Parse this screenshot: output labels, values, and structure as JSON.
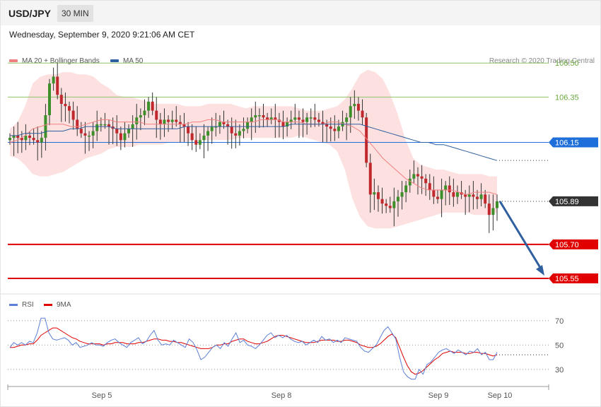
{
  "header": {
    "pair": "USD/JPY",
    "timeframe": "30 MIN"
  },
  "timestamp": "Wednesday, September 9, 2020 9:21:06 AM CET",
  "legend": {
    "ma20": "MA 20 + Bollinger Bands",
    "ma50": "MA 50",
    "ma20_color": "#f08080",
    "ma50_color": "#2f5f9e"
  },
  "copyright": "Research © 2020 Trading Central",
  "rsi_legend": {
    "rsi": "RSI",
    "ma9": "9MA",
    "rsi_color": "#5b7fd6",
    "ma9_color": "#e00000"
  },
  "chart_data": [
    {
      "type": "candlestick",
      "ylim": [
        105.5,
        106.56
      ],
      "x_ticks": [
        "Sep 5",
        "Sep 8",
        "Sep 9",
        "Sep 10"
      ],
      "levels": [
        {
          "value": 106.5,
          "label": "106.50",
          "color": "#8fc46a",
          "kind": "resistance"
        },
        {
          "value": 106.35,
          "label": "106.35",
          "color": "#8fc46a",
          "kind": "resistance"
        },
        {
          "value": 106.15,
          "label": "106.15",
          "color": "#1e6fd9",
          "kind": "pivot"
        },
        {
          "value": 105.89,
          "label": "105.89",
          "color": "#333333",
          "kind": "last_price"
        },
        {
          "value": 105.7,
          "label": "105.70",
          "color": "#e00000",
          "kind": "support"
        },
        {
          "value": 105.55,
          "label": "105.55",
          "color": "#e00000",
          "kind": "target"
        }
      ],
      "close": [
        106.17,
        106.18,
        106.17,
        106.16,
        106.18,
        106.17,
        106.16,
        106.15,
        106.17,
        106.27,
        106.41,
        106.44,
        106.36,
        106.32,
        106.31,
        106.29,
        106.25,
        106.21,
        106.19,
        106.18,
        106.18,
        106.2,
        106.23,
        106.23,
        106.23,
        106.22,
        106.21,
        106.19,
        106.16,
        106.19,
        106.21,
        106.23,
        106.26,
        106.27,
        106.29,
        106.33,
        106.29,
        106.25,
        106.23,
        106.25,
        106.24,
        106.25,
        106.24,
        106.23,
        106.22,
        106.19,
        106.16,
        106.14,
        106.16,
        106.18,
        106.2,
        106.22,
        106.22,
        106.24,
        106.23,
        106.22,
        106.19,
        106.18,
        106.2,
        106.21,
        106.24,
        106.26,
        106.27,
        106.27,
        106.26,
        106.25,
        106.26,
        106.25,
        106.24,
        106.22,
        106.24,
        106.25,
        106.26,
        106.25,
        106.24,
        106.26,
        106.26,
        106.25,
        106.24,
        106.23,
        106.22,
        106.21,
        106.2,
        106.22,
        106.24,
        106.26,
        106.31,
        106.32,
        106.29,
        106.26,
        106.06,
        105.92,
        105.93,
        105.9,
        105.88,
        105.87,
        105.86,
        105.89,
        105.91,
        105.93,
        105.96,
        105.99,
        106.01,
        106.0,
        105.99,
        105.97,
        105.94,
        105.91,
        105.9,
        105.94,
        105.96,
        105.93,
        105.91,
        105.93,
        105.92,
        105.91,
        105.92,
        105.91,
        105.9,
        105.92,
        105.88,
        105.83,
        105.86,
        105.89
      ],
      "ma20": [
        106.15,
        106.16,
        106.18,
        106.21,
        106.22,
        106.23,
        106.23,
        106.23,
        106.22,
        106.22,
        106.23,
        106.24,
        106.25,
        106.25,
        106.24,
        106.24,
        106.24,
        106.24,
        106.23,
        106.23,
        106.23,
        106.23,
        106.23,
        106.23,
        106.24,
        106.24,
        106.25,
        106.25,
        106.24,
        106.24,
        106.24,
        106.24,
        106.24,
        106.25,
        106.25,
        106.25,
        106.24,
        106.24,
        106.24,
        106.23,
        106.23,
        106.23,
        106.24,
        106.24,
        106.23,
        106.22,
        106.2,
        106.16,
        106.12,
        106.08,
        106.05,
        106.02,
        105.99,
        105.97,
        105.95,
        105.94,
        105.94,
        105.94,
        105.94,
        105.93,
        105.92,
        105.93,
        105.93,
        105.93,
        105.92
      ],
      "ma50": [
        106.18,
        106.18,
        106.19,
        106.19,
        106.19,
        106.2,
        106.2,
        106.2,
        106.21,
        106.21,
        106.22,
        106.22,
        106.22,
        106.22,
        106.21,
        106.21,
        106.21,
        106.21,
        106.21,
        106.21,
        106.21,
        106.21,
        106.21,
        106.22,
        106.22,
        106.22,
        106.22,
        106.22,
        106.22,
        106.22,
        106.22,
        106.22,
        106.22,
        106.22,
        106.22,
        106.22,
        106.22,
        106.23,
        106.23,
        106.23,
        106.23,
        106.23,
        106.23,
        106.23,
        106.23,
        106.23,
        106.23,
        106.22,
        106.21,
        106.2,
        106.19,
        106.18,
        106.17,
        106.16,
        106.15,
        106.15,
        106.14,
        106.14,
        106.13,
        106.12,
        106.11,
        106.1,
        106.09,
        106.08,
        106.07
      ],
      "bb_upper": [
        106.21,
        106.24,
        106.31,
        106.41,
        106.44,
        106.45,
        106.45,
        106.46,
        106.46,
        106.45,
        106.45,
        106.44,
        106.41,
        106.39,
        106.36,
        106.35,
        106.35,
        106.34,
        106.33,
        106.32,
        106.32,
        106.32,
        106.32,
        106.31,
        106.31,
        106.31,
        106.32,
        106.32,
        106.32,
        106.32,
        106.31,
        106.3,
        106.31,
        106.31,
        106.31,
        106.31,
        106.31,
        106.31,
        106.3,
        106.29,
        106.29,
        106.29,
        106.3,
        106.31,
        106.34,
        106.39,
        106.45,
        106.47,
        106.46,
        106.43,
        106.36,
        106.27,
        106.16,
        106.08,
        106.05,
        106.04,
        106.03,
        106.03,
        106.02,
        106.01,
        106.01,
        106.01,
        106.01,
        106.0,
        106.0
      ],
      "bb_lower": [
        106.09,
        106.08,
        106.05,
        106.01,
        106.0,
        106.0,
        106.01,
        106.02,
        106.04,
        106.06,
        106.08,
        106.09,
        106.1,
        106.12,
        106.13,
        106.13,
        106.13,
        106.14,
        106.14,
        106.14,
        106.14,
        106.15,
        106.15,
        106.15,
        106.16,
        106.16,
        106.16,
        106.16,
        106.16,
        106.16,
        106.17,
        106.17,
        106.17,
        106.17,
        106.17,
        106.17,
        106.17,
        106.17,
        106.18,
        106.17,
        106.16,
        106.15,
        106.14,
        106.11,
        106.03,
        105.9,
        105.82,
        105.78,
        105.77,
        105.77,
        105.77,
        105.78,
        105.79,
        105.8,
        105.81,
        105.82,
        105.83,
        105.84,
        105.84,
        105.84,
        105.84,
        105.83,
        105.83,
        105.83,
        105.84
      ],
      "projection": {
        "from": 105.89,
        "to": 105.55
      }
    },
    {
      "type": "line",
      "title": "RSI",
      "ylim": [
        20,
        78
      ],
      "y_ticks": [
        70,
        50,
        30
      ],
      "rsi": [
        48,
        52,
        50,
        52,
        50,
        53,
        52,
        60,
        72,
        72,
        60,
        55,
        54,
        55,
        56,
        54,
        50,
        52,
        48,
        49,
        50,
        52,
        50,
        50,
        49,
        52,
        54,
        55,
        52,
        50,
        48,
        52,
        54,
        56,
        51,
        53,
        58,
        62,
        54,
        50,
        51,
        50,
        54,
        52,
        50,
        48,
        55,
        52,
        46,
        38,
        40,
        44,
        48,
        50,
        47,
        52,
        49,
        55,
        60,
        52,
        54,
        50,
        49,
        47,
        50,
        54,
        58,
        60,
        56,
        58,
        56,
        58,
        55,
        53,
        52,
        53,
        50,
        52,
        54,
        52,
        57,
        54,
        55,
        52,
        54,
        52,
        56,
        55,
        54,
        53,
        48,
        45,
        44,
        47,
        50,
        56,
        62,
        65,
        60,
        55,
        40,
        28,
        24,
        22,
        22,
        30,
        26,
        34,
        36,
        40,
        44,
        46,
        47,
        45,
        43,
        46,
        44,
        42,
        45,
        44,
        47,
        42,
        44,
        38,
        38,
        44
      ],
      "ma9": [
        48,
        48,
        49,
        50,
        50,
        51,
        51,
        54,
        58,
        60,
        62,
        64,
        64,
        62,
        60,
        58,
        56,
        55,
        53,
        52,
        51,
        51,
        51,
        51,
        50,
        51,
        51,
        52,
        52,
        52,
        51,
        51,
        51,
        52,
        52,
        53,
        54,
        55,
        55,
        54,
        54,
        53,
        53,
        52,
        52,
        51,
        50,
        49,
        48,
        47,
        47,
        47,
        48,
        50,
        50,
        51,
        51,
        53,
        54,
        55,
        55,
        53,
        52,
        51,
        51,
        52,
        53,
        55,
        57,
        58,
        58,
        57,
        56,
        55,
        54,
        53,
        52,
        52,
        52,
        53,
        54,
        54,
        54,
        54,
        53,
        53,
        54,
        54,
        53,
        52,
        50,
        49,
        48,
        48,
        49,
        51,
        54,
        57,
        59,
        56,
        48,
        40,
        33,
        28,
        26,
        27,
        29,
        32,
        35,
        38,
        40,
        43,
        44,
        45,
        44,
        44,
        44,
        43,
        43,
        44,
        44,
        43,
        43,
        42,
        41,
        42
      ]
    }
  ]
}
